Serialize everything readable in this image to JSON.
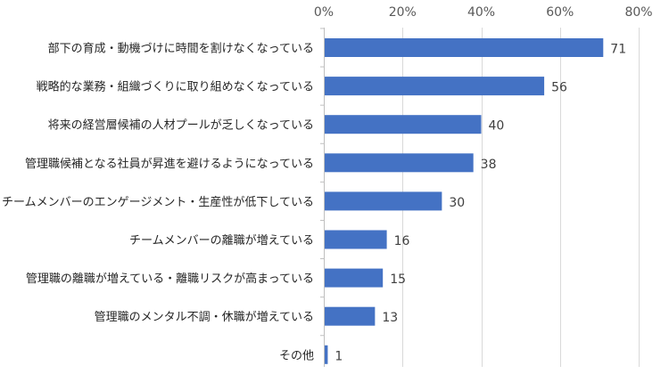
{
  "chart_data": {
    "type": "bar",
    "orientation": "horizontal",
    "categories": [
      "部下の育成・動機づけに時間を割けなくなっている",
      "戦略的な業務・組織づくりに取り組めなくなっている",
      "将来の経営層候補の人材プールが乏しくなっている",
      "管理職候補となる社員が昇進を避けるようになっている",
      "チームメンバーのエンゲージメント・生産性が低下している",
      "チームメンバーの離職が増えている",
      "管理職の離職が増えている・離職リスクが高まっている",
      "管理職のメンタル不調・休職が増えている",
      "その他"
    ],
    "values": [
      71,
      56,
      40,
      38,
      30,
      16,
      15,
      13,
      1
    ],
    "xlim": [
      0,
      80
    ],
    "xticks": [
      "0%",
      "20%",
      "40%",
      "60%",
      "80%"
    ],
    "xtick_values": [
      0,
      20,
      40,
      60,
      80
    ],
    "axis_position": "top",
    "grid": true,
    "bar_color": "#4472c4",
    "title": "",
    "xlabel": "",
    "ylabel": ""
  }
}
